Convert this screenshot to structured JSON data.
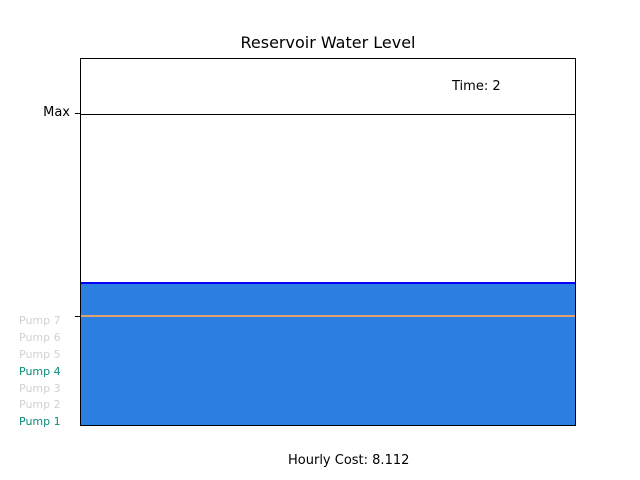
{
  "title": "Reservoir Water Level",
  "time_label": "Time: 2",
  "max_label": "Max",
  "hourly_cost": "Hourly Cost: 8.112",
  "water_level_fraction": 0.39,
  "threshold_fraction": 0.3,
  "max_fraction": 0.85,
  "colors": {
    "water": "#2a7fe0",
    "water_edge": "#0000ff",
    "threshold": "#e0a070",
    "pump_active": "#0a8a78",
    "pump_inactive": "#d2d2d2"
  },
  "pumps": [
    {
      "label": "Pump 7",
      "active": false
    },
    {
      "label": "Pump 6",
      "active": false
    },
    {
      "label": "Pump 5",
      "active": false
    },
    {
      "label": "Pump 4",
      "active": true
    },
    {
      "label": "Pump 3",
      "active": false
    },
    {
      "label": "Pump 2",
      "active": false
    },
    {
      "label": "Pump 1",
      "active": true
    }
  ]
}
